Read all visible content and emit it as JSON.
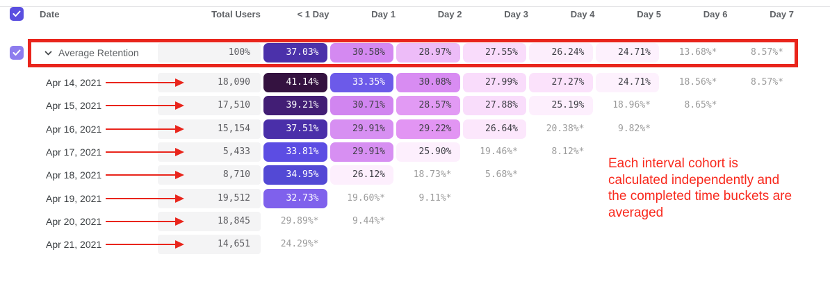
{
  "colors": {
    "accent": "#5a4fe0",
    "accent_light": "#8d7cee",
    "red": "#e9251c",
    "annotation_red": "#f8281c",
    "muted": "#9b9b9b",
    "cell_text": "#3f3f46",
    "header_text": "#5f6266",
    "date_text": "#3c4043",
    "total_bg": "#f4f4f5",
    "total_text": "#5c5c60",
    "divider": "#e4e4e6"
  },
  "icons": {
    "select_all_checkbox": "checkmark",
    "average_row_checkbox": "checkmark",
    "row_expander": "chevron-down",
    "row_pointer": "red-arrow-right"
  },
  "table": {
    "columns": [
      "Date",
      "Total Users"
    ],
    "day_columns": [
      "< 1 Day",
      "Day 1",
      "Day 2",
      "Day 3",
      "Day 4",
      "Day 5",
      "Day 6",
      "Day 7"
    ],
    "average_row": {
      "label": "Average Retention",
      "total": "100%",
      "cells": [
        {
          "t": "37.03%",
          "bg": "#4b31aa",
          "fg": "#ffffff"
        },
        {
          "t": "30.58%",
          "bg": "#d489f1"
        },
        {
          "t": "28.97%",
          "bg": "#edbcf8"
        },
        {
          "t": "27.55%",
          "bg": "#f9dcfb"
        },
        {
          "t": "26.24%",
          "bg": "#fceefc"
        },
        {
          "t": "24.71%",
          "bg": "#fdf1fd"
        },
        {
          "t": "13.68%*",
          "muted": true
        },
        {
          "t": "8.57%*",
          "muted": true
        }
      ]
    },
    "rows": [
      {
        "date": "Apr 14, 2021",
        "total": "18,090",
        "cells": [
          {
            "t": "41.14%",
            "bg": "#341240",
            "fg": "#ffffff"
          },
          {
            "t": "33.35%",
            "bg": "#6c5ae9",
            "fg": "#ffffff"
          },
          {
            "t": "30.08%",
            "bg": "#d88cf2"
          },
          {
            "t": "27.99%",
            "bg": "#f9dcfb"
          },
          {
            "t": "27.27%",
            "bg": "#fbe2fb"
          },
          {
            "t": "24.71%",
            "bg": "#fdf1fd"
          },
          {
            "t": "18.56%*",
            "muted": true
          },
          {
            "t": "8.57%*",
            "muted": true
          }
        ]
      },
      {
        "date": "Apr 15, 2021",
        "total": "17,510",
        "cells": [
          {
            "t": "39.21%",
            "bg": "#421e75",
            "fg": "#ffffff"
          },
          {
            "t": "30.71%",
            "bg": "#d185f0"
          },
          {
            "t": "28.57%",
            "bg": "#e29af4"
          },
          {
            "t": "27.88%",
            "bg": "#f9ddfb"
          },
          {
            "t": "25.19%",
            "bg": "#fdeffd"
          },
          {
            "t": "18.96%*",
            "muted": true
          },
          {
            "t": "8.65%*",
            "muted": true
          }
        ]
      },
      {
        "date": "Apr 16, 2021",
        "total": "15,154",
        "cells": [
          {
            "t": "37.51%",
            "bg": "#4a2fa9",
            "fg": "#ffffff"
          },
          {
            "t": "29.91%",
            "bg": "#d78ff2"
          },
          {
            "t": "29.22%",
            "bg": "#e295f3"
          },
          {
            "t": "26.64%",
            "bg": "#fce7fc"
          },
          {
            "t": "20.38%*",
            "muted": true
          },
          {
            "t": "9.82%*",
            "muted": true
          }
        ]
      },
      {
        "date": "Apr 17, 2021",
        "total": "5,433",
        "cells": [
          {
            "t": "33.81%",
            "bg": "#5c4de3",
            "fg": "#ffffff"
          },
          {
            "t": "29.91%",
            "bg": "#d78ff2"
          },
          {
            "t": "25.90%",
            "bg": "#fdeffd"
          },
          {
            "t": "19.46%*",
            "muted": true
          },
          {
            "t": "8.12%*",
            "muted": true
          }
        ]
      },
      {
        "date": "Apr 18, 2021",
        "total": "8,710",
        "cells": [
          {
            "t": "34.95%",
            "bg": "#5349d5",
            "fg": "#ffffff"
          },
          {
            "t": "26.12%",
            "bg": "#fdeffd"
          },
          {
            "t": "18.73%*",
            "muted": true
          },
          {
            "t": "5.68%*",
            "muted": true
          }
        ]
      },
      {
        "date": "Apr 19, 2021",
        "total": "19,512",
        "cells": [
          {
            "t": "32.73%",
            "bg": "#7f61ec",
            "fg": "#ffffff"
          },
          {
            "t": "19.60%*",
            "muted": true
          },
          {
            "t": "9.11%*",
            "muted": true
          }
        ]
      },
      {
        "date": "Apr 20, 2021",
        "total": "18,845",
        "cells": [
          {
            "t": "29.89%*",
            "muted": true
          },
          {
            "t": "9.44%*",
            "muted": true
          }
        ]
      },
      {
        "date": "Apr 21, 2021",
        "total": "14,651",
        "cells": [
          {
            "t": "24.29%*",
            "muted": true
          }
        ]
      }
    ]
  },
  "annotation": {
    "lines": [
      "Each interval cohort is",
      "calculated independently and",
      "the completed time buckets are",
      "averaged"
    ]
  }
}
